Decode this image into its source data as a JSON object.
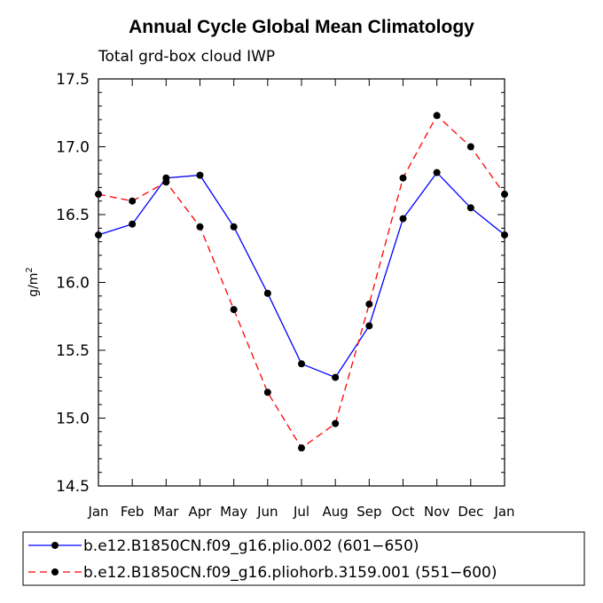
{
  "chart_data": {
    "type": "line",
    "title": "Annual Cycle Global Mean Climatology",
    "subtitle": "Total grd-box cloud IWP",
    "ylabel_base": "g/m",
    "ylabel_sup": "2",
    "xlabel": "",
    "categories": [
      "Jan",
      "Feb",
      "Mar",
      "Apr",
      "May",
      "Jun",
      "Jul",
      "Aug",
      "Sep",
      "Oct",
      "Nov",
      "Dec",
      "Jan"
    ],
    "ylim": [
      14.5,
      17.5
    ],
    "yticks": [
      14.5,
      15.0,
      15.5,
      16.0,
      16.5,
      17.0,
      17.5
    ],
    "ytick_labels": [
      "14.5",
      "15.0",
      "15.5",
      "16.0",
      "16.5",
      "17.0",
      "17.5"
    ],
    "series": [
      {
        "name": "b.e12.B1850CN.f09_g16.plio.002 (601−650)",
        "color": "#0000ff",
        "dash": "solid",
        "values": [
          16.35,
          16.43,
          16.77,
          16.79,
          16.41,
          15.92,
          15.4,
          15.3,
          15.68,
          16.47,
          16.81,
          16.55,
          16.35
        ]
      },
      {
        "name": "b.e12.B1850CN.f09_g16.pliohorb.3159.001 (551−600)",
        "color": "#ff0000",
        "dash": "dashed",
        "values": [
          16.65,
          16.6,
          16.74,
          16.41,
          15.8,
          15.19,
          14.78,
          14.96,
          15.84,
          16.77,
          17.23,
          17.0,
          16.65
        ]
      }
    ],
    "grid": false,
    "legend_position": "bottom"
  }
}
